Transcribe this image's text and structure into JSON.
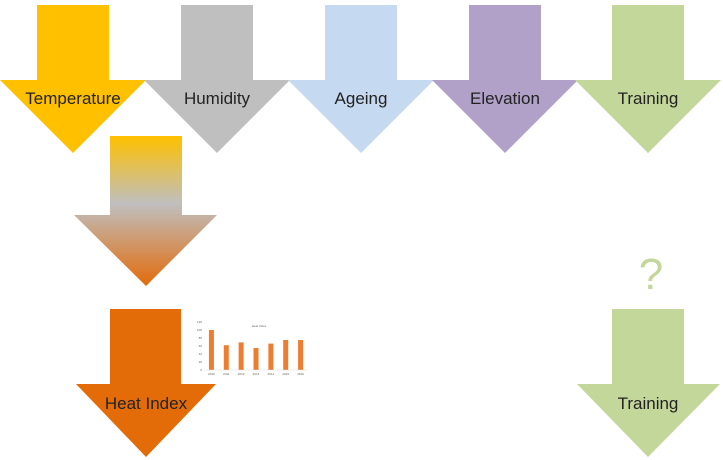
{
  "factors": [
    {
      "label": "Temperature",
      "color": "#FFC000"
    },
    {
      "label": "Humidity",
      "color": "#BFBFBF"
    },
    {
      "label": "Ageing",
      "color": "#C5D9F1"
    },
    {
      "label": "Elevation",
      "color": "#B1A0C7"
    },
    {
      "label": "Training",
      "color": "#C4D79B"
    }
  ],
  "combine_gradient": [
    "#FFC000",
    "#BFBFBF",
    "#E26B0A"
  ],
  "heat_index": {
    "label": "Heat Index",
    "color": "#E36C09"
  },
  "unknown": {
    "label": "?",
    "color": "#C4D79B"
  },
  "result_training": {
    "label": "Training",
    "color": "#C4D79B"
  },
  "mini_chart": {
    "title": "Heat Index",
    "bar_color": "#ED7D31",
    "chart_data": {
      "type": "bar",
      "title": "Heat Index",
      "categories": [
        "2010",
        "2011",
        "2012",
        "2013",
        "2014",
        "2015",
        "2016"
      ],
      "values": [
        100,
        62,
        69,
        55,
        66,
        75,
        75
      ],
      "ylim": [
        0,
        120
      ]
    }
  }
}
